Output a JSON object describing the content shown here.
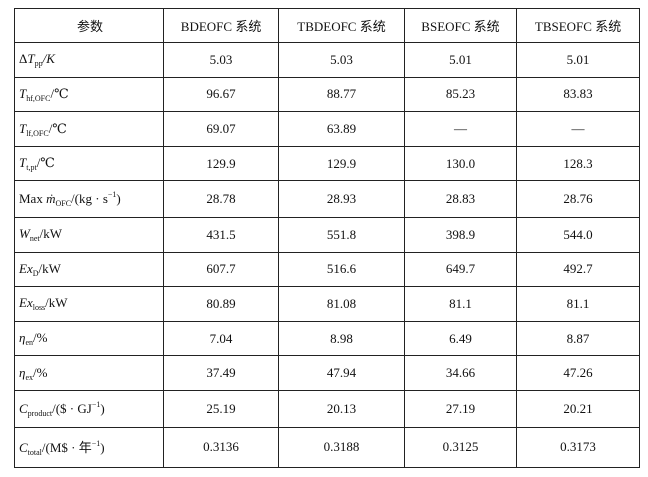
{
  "table": {
    "header": [
      "参数",
      "BDEOFC 系统",
      "TBDEOFC 系统",
      "BSEOFC 系统",
      "TBSEOFC 系统"
    ],
    "rows": [
      {
        "label": [
          {
            "text": "Δ"
          },
          {
            "text": "T",
            "style": "italic"
          },
          {
            "text": "pp",
            "style": "sub"
          },
          {
            "text": "/K",
            "style": "italic"
          }
        ],
        "values": [
          "5.03",
          "5.03",
          "5.01",
          "5.01"
        ]
      },
      {
        "label": [
          {
            "text": "T",
            "style": "italic"
          },
          {
            "text": "hf,OFC",
            "style": "sub"
          },
          {
            "text": "/℃"
          }
        ],
        "values": [
          "96.67",
          "88.77",
          "85.23",
          "83.83"
        ]
      },
      {
        "label": [
          {
            "text": "T",
            "style": "italic"
          },
          {
            "text": "lf,OFC",
            "style": "sub"
          },
          {
            "text": "/℃"
          }
        ],
        "values": [
          "69.07",
          "63.89",
          "—",
          "—"
        ]
      },
      {
        "label": [
          {
            "text": "T",
            "style": "italic"
          },
          {
            "text": "t,pt",
            "style": "sub"
          },
          {
            "text": "/℃"
          }
        ],
        "values": [
          "129.9",
          "129.9",
          "130.0",
          "128.3"
        ]
      },
      {
        "label": [
          {
            "text": "Max "
          },
          {
            "text": "ṁ",
            "style": "italic"
          },
          {
            "text": "OFC",
            "style": "sub"
          },
          {
            "text": "/(kg · s"
          },
          {
            "text": "−1",
            "style": "sup"
          },
          {
            "text": ")"
          }
        ],
        "values": [
          "28.78",
          "28.93",
          "28.83",
          "28.76"
        ]
      },
      {
        "label": [
          {
            "text": "W",
            "style": "italic"
          },
          {
            "text": "net",
            "style": "sub"
          },
          {
            "text": "/kW"
          }
        ],
        "values": [
          "431.5",
          "551.8",
          "398.9",
          "544.0"
        ]
      },
      {
        "label": [
          {
            "text": "Ex",
            "style": "italic"
          },
          {
            "text": "D",
            "style": "sub"
          },
          {
            "text": "/kW"
          }
        ],
        "values": [
          "607.7",
          "516.6",
          "649.7",
          "492.7"
        ]
      },
      {
        "label": [
          {
            "text": "Ex",
            "style": "italic"
          },
          {
            "text": "loss",
            "style": "sub"
          },
          {
            "text": "/kW"
          }
        ],
        "values": [
          "80.89",
          "81.08",
          "81.1",
          "81.1"
        ]
      },
      {
        "label": [
          {
            "text": "η",
            "style": "italic"
          },
          {
            "text": "en",
            "style": "sub"
          },
          {
            "text": "/%"
          }
        ],
        "values": [
          "7.04",
          "8.98",
          "6.49",
          "8.87"
        ]
      },
      {
        "label": [
          {
            "text": "η",
            "style": "italic"
          },
          {
            "text": "ex",
            "style": "sub"
          },
          {
            "text": "/%"
          }
        ],
        "values": [
          "37.49",
          "47.94",
          "34.66",
          "47.26"
        ]
      },
      {
        "label": [
          {
            "text": "C",
            "style": "italic"
          },
          {
            "text": "product",
            "style": "sub"
          },
          {
            "text": "/($ · GJ"
          },
          {
            "text": "−1",
            "style": "sup"
          },
          {
            "text": ")"
          }
        ],
        "values": [
          "25.19",
          "20.13",
          "27.19",
          "20.21"
        ]
      },
      {
        "label": [
          {
            "text": "C",
            "style": "italic"
          },
          {
            "text": "total",
            "style": "sub"
          },
          {
            "text": "/(M$ · 年"
          },
          {
            "text": "−1",
            "style": "sup"
          },
          {
            "text": ")"
          }
        ],
        "values": [
          "0.3136",
          "0.3188",
          "0.3125",
          "0.3173"
        ]
      }
    ]
  }
}
